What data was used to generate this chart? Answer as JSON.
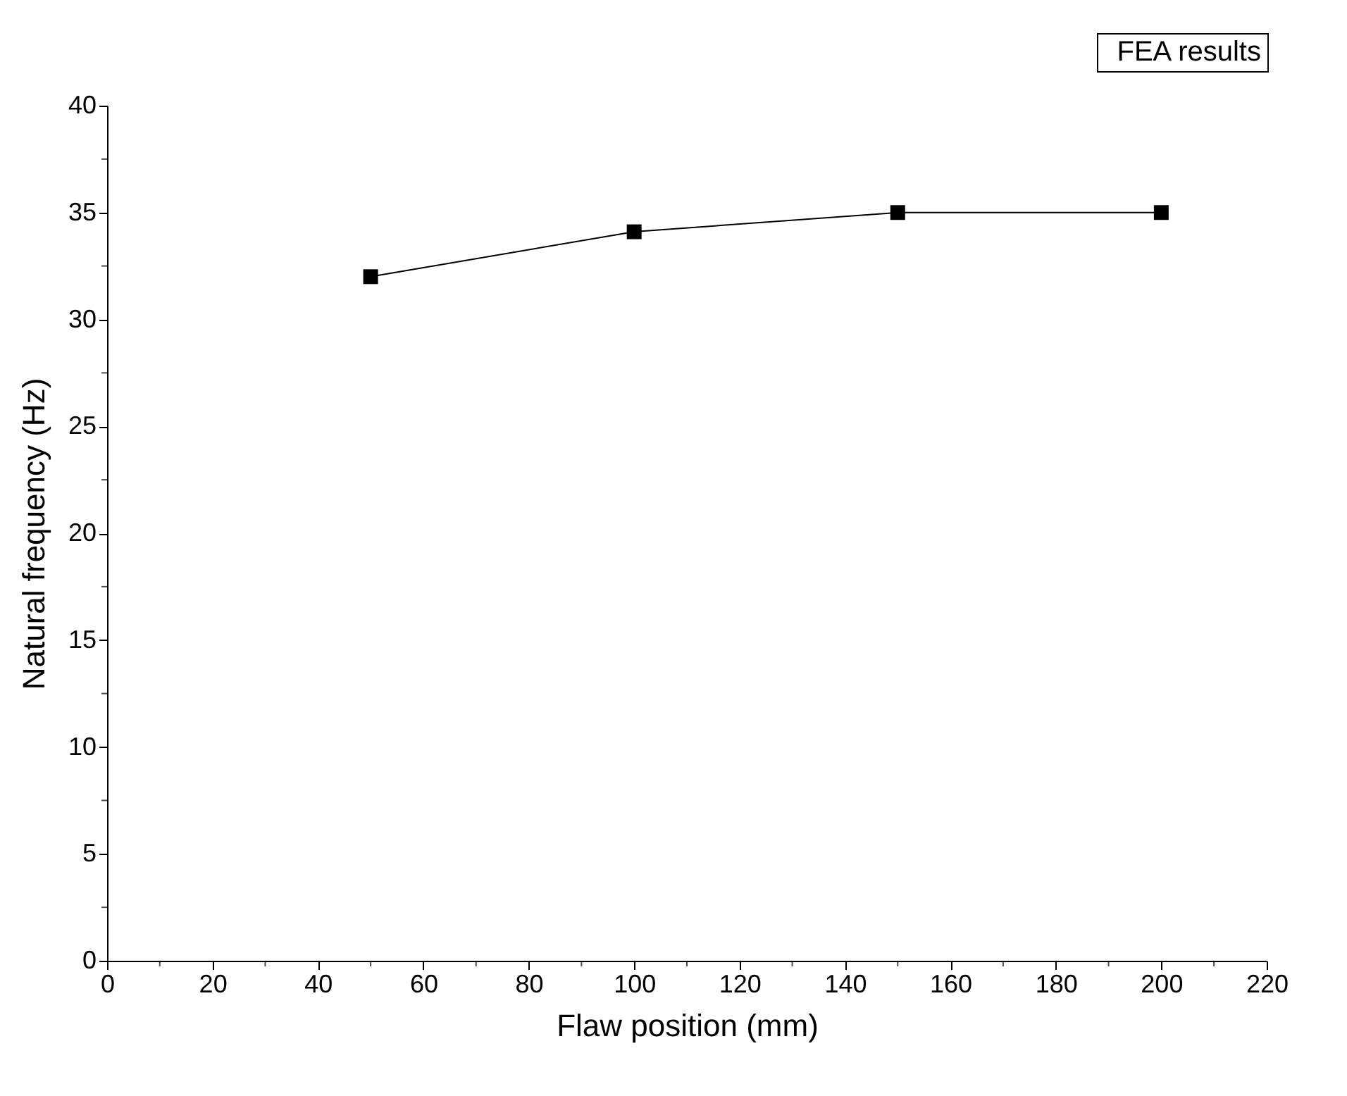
{
  "chart_data": {
    "type": "line",
    "xlabel": "Flaw position (mm)",
    "ylabel": "Natural frequency (Hz)",
    "x": [
      50,
      100,
      150,
      200
    ],
    "series": [
      {
        "name": "FEA results",
        "color": "#000000",
        "values": [
          32.0,
          34.1,
          35.0,
          35.0
        ]
      }
    ],
    "xlim": [
      0,
      220
    ],
    "xticks": [
      0,
      {
        "value": 10,
        "label": null
      },
      20,
      {
        "value": 30,
        "label": null
      },
      40,
      {
        "value": 50,
        "label": null
      },
      60,
      {
        "value": 70,
        "label": null
      },
      80,
      {
        "value": 90,
        "label": null
      },
      100,
      {
        "value": 110,
        "label": null
      },
      120,
      {
        "value": 130,
        "label": null
      },
      140,
      {
        "value": 150,
        "label": null
      },
      160,
      {
        "value": 170,
        "label": null
      },
      180,
      {
        "value": 190,
        "label": null
      },
      200,
      {
        "value": 210,
        "label": null
      },
      220
    ],
    "ylim": [
      0,
      40
    ],
    "yticks": [
      0,
      {
        "value": 2.5,
        "label": null
      },
      5,
      {
        "value": 7.5,
        "label": null
      },
      10,
      {
        "value": 12.5,
        "label": null
      },
      15,
      {
        "value": 17.5,
        "label": null
      },
      20,
      {
        "value": 22.5,
        "label": null
      },
      25,
      {
        "value": 27.5,
        "label": null
      },
      30,
      {
        "value": 32.5,
        "label": null
      },
      35,
      {
        "value": 37.5,
        "label": null
      },
      40
    ],
    "marker": "square",
    "line_style": "solid",
    "grid": false
  }
}
